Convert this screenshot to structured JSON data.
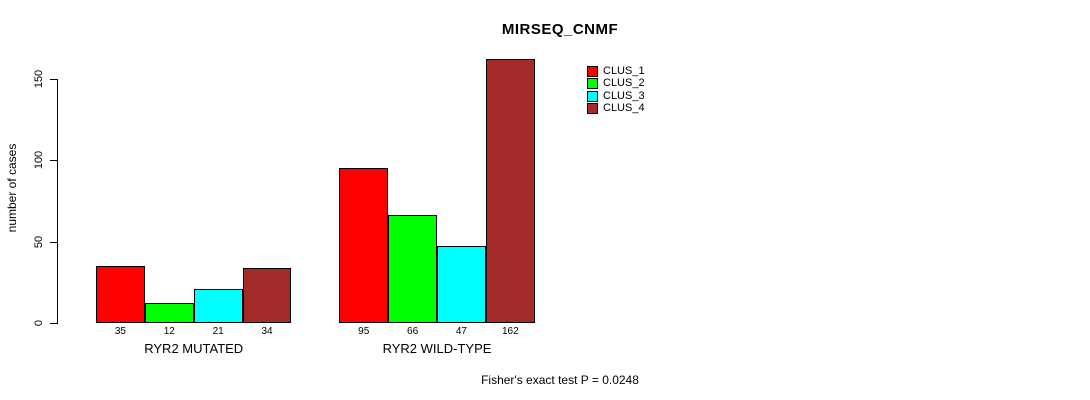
{
  "chart_data": {
    "type": "bar",
    "title": "MIRSEQ_CNMF",
    "ylabel": "number of cases",
    "xlabel": "",
    "ylim": [
      0,
      150
    ],
    "yticks": [
      "0",
      "50",
      "100",
      "150"
    ],
    "ytick_values": [
      0,
      50,
      100,
      150
    ],
    "categories": [
      "RYR2 MUTATED",
      "RYR2 WILD-TYPE"
    ],
    "series": [
      {
        "name": "CLUS_1",
        "color": "#ff0000",
        "values": [
          35,
          95
        ]
      },
      {
        "name": "CLUS_2",
        "color": "#00ff00",
        "values": [
          12,
          66
        ]
      },
      {
        "name": "CLUS_3",
        "color": "#00ffff",
        "values": [
          21,
          47
        ]
      },
      {
        "name": "CLUS_4",
        "color": "#a52a2a",
        "values": [
          34,
          162
        ]
      }
    ],
    "bar_labels": [
      [
        "35",
        "12",
        "21",
        "34"
      ],
      [
        "95",
        "66",
        "47",
        "162"
      ]
    ],
    "legend_position": "top-right",
    "grid": false,
    "annotation": "Fisher's exact test P = 0.0248"
  }
}
